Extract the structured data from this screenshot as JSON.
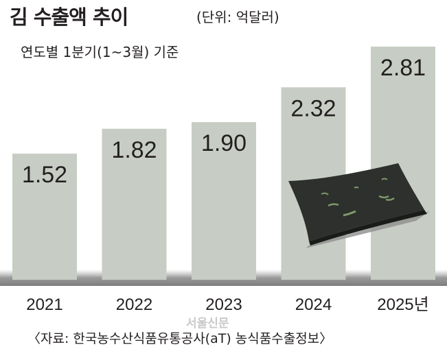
{
  "title": "김 수출액 추이",
  "unit": "(단위: 억달러)",
  "subtitle": "연도별 1분기(1~3월) 기준",
  "source": "〈자료: 한국농수산식품유통공사(aT) 농식품수출정보〉",
  "watermark": "서울신문",
  "colors": {
    "bar": "#c7cdc4",
    "text": "#231f20",
    "floor": "#8f8f8f",
    "seaweed": "#2d302c"
  },
  "chart_data": {
    "type": "bar",
    "categories": [
      "2021",
      "2022",
      "2023",
      "2024",
      "2025년"
    ],
    "values": [
      1.52,
      1.82,
      1.9,
      2.32,
      2.81
    ],
    "value_labels": [
      "1.52",
      "1.82",
      "1.90",
      "2.32",
      "2.81"
    ],
    "title": "김 수출액 추이",
    "subtitle": "연도별 1분기(1~3월) 기준",
    "unit": "(단위: 억달러)",
    "grid": false,
    "legend": "none"
  }
}
